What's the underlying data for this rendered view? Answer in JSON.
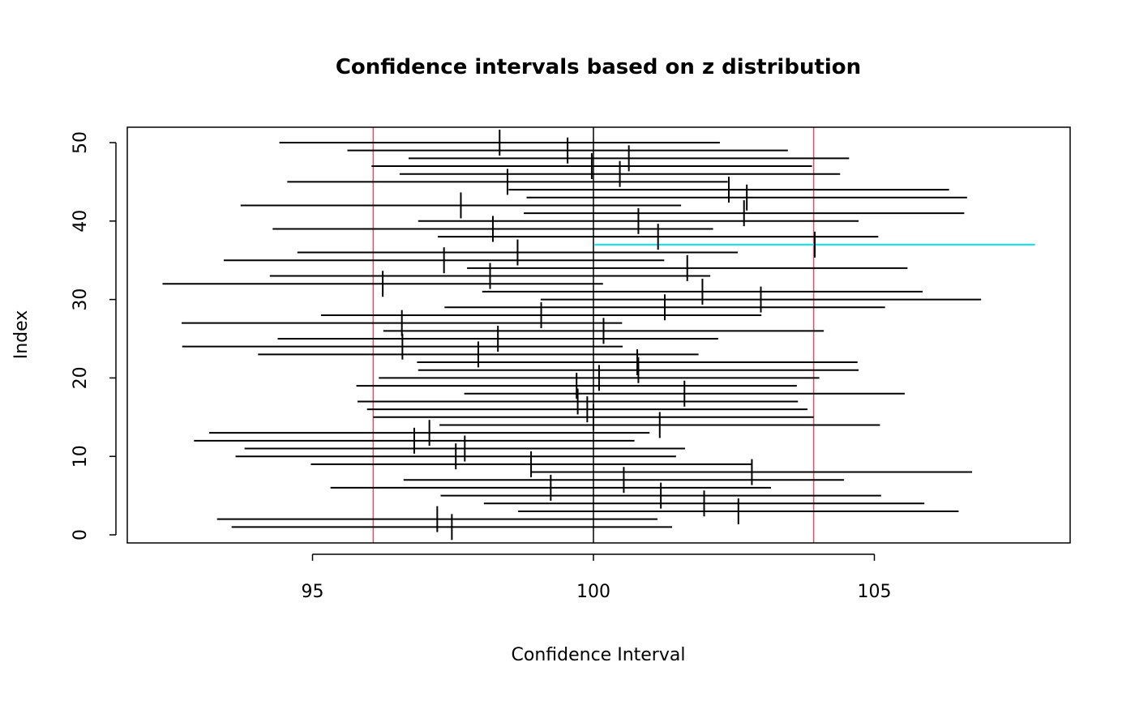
{
  "chart_data": {
    "type": "interval",
    "title": "Confidence intervals based on z distribution",
    "xlabel": "Confidence Interval",
    "ylabel": "Index",
    "xlim": [
      91.6,
      108.4
    ],
    "ylim": [
      -1,
      52
    ],
    "x_ticks": [
      95,
      100,
      105
    ],
    "y_ticks": [
      0,
      10,
      20,
      30,
      40,
      50
    ],
    "true_mean": 100,
    "half_width": 3.92,
    "reference_lines": [
      96.08,
      103.92
    ],
    "colors": {
      "interval": "#000000",
      "miss": "#00e5ee",
      "reference": "#df536b",
      "center": "#000000"
    },
    "means": [
      97.48,
      97.22,
      102.58,
      101.97,
      101.2,
      99.24,
      100.54,
      102.82,
      98.89,
      97.55,
      97.71,
      96.81,
      97.08,
      101.18,
      100.0,
      99.89,
      99.72,
      101.62,
      99.7,
      100.1,
      100.8,
      100.78,
      97.95,
      96.6,
      98.3,
      100.18,
      96.59,
      99.07,
      101.27,
      102.98,
      101.94,
      96.25,
      98.16,
      101.67,
      97.34,
      98.65,
      103.94,
      101.15,
      98.21,
      100.8,
      102.68,
      97.64,
      102.73,
      102.41,
      98.47,
      100.47,
      99.97,
      100.63,
      99.54,
      98.33
    ]
  }
}
